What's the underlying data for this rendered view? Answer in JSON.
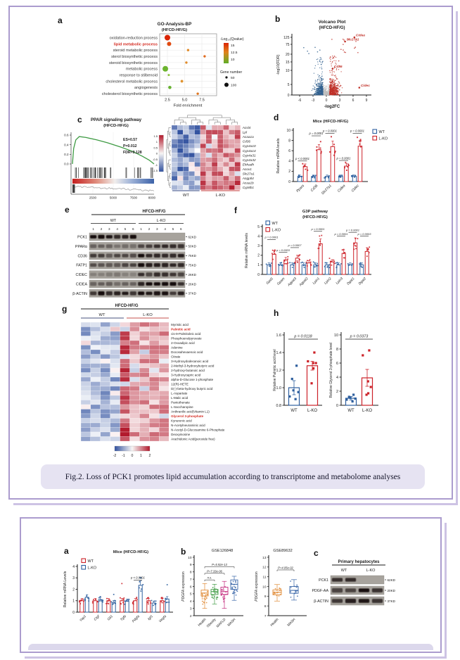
{
  "fig2": {
    "labels": {
      "a": "a",
      "b": "b",
      "c": "c",
      "d": "d",
      "e": "e",
      "f": "f",
      "g": "g",
      "h": "h"
    },
    "caption": "Fig.2. Loss of PCK1 promotes lipid accumulation according to transcriptome and metabolome analyses"
  },
  "fig3": {
    "labels": {
      "a": "a",
      "b": "b",
      "c": "c"
    }
  },
  "colors": {
    "wt_blue": "#2e5f9e",
    "ko_red": "#cc2128",
    "card_border": "#ab9cce",
    "card_shadow": "#cdc3e4",
    "caption_bg": "#e6e3f2",
    "heat_red": "#b2182b",
    "heat_blue": "#31519f",
    "gsea_green": "#3f9b44"
  },
  "chart_data": {
    "go": {
      "type": "scatter",
      "title": "GO-Analysis-BP",
      "subtitle": "(HFCD-HF/G)",
      "xlabel": "Fold enrichment",
      "xticks": [
        "2.5",
        "5.0",
        "7.5"
      ],
      "xtick_values": [
        2.5,
        5.0,
        7.5
      ],
      "xlim": [
        1.4,
        8.6
      ],
      "highlight": "lipid metabolic process",
      "rows": [
        {
          "label": "oxidation-reduction process",
          "fold": 2.5,
          "color": "#da2405",
          "r": 4
        },
        {
          "label": "lipid metabolic process",
          "fold": 2.75,
          "color": "#e14a10",
          "r": 3
        },
        {
          "label": "steroid metabolic process",
          "fold": 5.5,
          "color": "#e08a28",
          "r": 1.7
        },
        {
          "label": "sterol biosynthetic process",
          "fold": 7.9,
          "color": "#e06a1e",
          "r": 1.7
        },
        {
          "label": "steroid biosynthetic process",
          "fold": 5.25,
          "color": "#e08a28",
          "r": 1.7
        },
        {
          "label": "metabolic process",
          "fold": 2.2,
          "color": "#6cb42e",
          "r": 4
        },
        {
          "label": "response to stilbenoid",
          "fold": 2.7,
          "color": "#8cc23c",
          "r": 1.5
        },
        {
          "label": "cholesterol metabolic process",
          "fold": 4.6,
          "color": "#e09430",
          "r": 1.9
        },
        {
          "label": "angiogenesis",
          "fold": 2.85,
          "color": "#67b232",
          "r": 2.3
        },
        {
          "label": "cholesterol biosynthetic process",
          "fold": 6.9,
          "color": "#e0761f",
          "r": 1.7
        }
      ],
      "legend": {
        "qvalue_title": "-Log₁₀(Qvalue)",
        "qvalue_ticks": [
          "15",
          "12.5",
          "10"
        ],
        "gene_title": "Gene number",
        "gene_sizes": [
          {
            "label": "50",
            "r": 1.6
          },
          {
            "label": "100",
            "r": 3
          }
        ]
      }
    },
    "volcano": {
      "type": "scatter",
      "title": "Volcano Plot",
      "subtitle": "(HFCD-HF/G)",
      "xlabel": "-log2FC",
      "ylabel": "-log10(FDR)",
      "xticks": [
        -6,
        -3,
        0,
        3,
        6,
        9
      ],
      "yticks": [
        0,
        5,
        10,
        15,
        20,
        75,
        125
      ],
      "gene_labels": [
        {
          "name": "Cidea",
          "x": 6.3,
          "y": 125
        },
        {
          "name": "Slc27a1",
          "x": 4.2,
          "y": 95
        },
        {
          "name": "Cd36",
          "x": 1.4,
          "y": 11
        },
        {
          "name": "Cidec",
          "x": 7.4,
          "y": 3.5
        }
      ],
      "clusters": {
        "down_n": 420,
        "up_n": 500,
        "ns_n": 320,
        "down_color": "#33618f",
        "up_color": "#c03028",
        "ns_color": "#bdbdbd"
      }
    },
    "gsea": {
      "type": "line",
      "title": "PPAR signaling pathway",
      "subtitle": "(HFCD-HF/G)",
      "stats": [
        "ES=0.57",
        "P=0.012",
        "FDR=0.128"
      ],
      "yticks": [
        "0.6",
        "0.4",
        "0.2",
        "0.0"
      ],
      "xticks": [
        "2500",
        "5000",
        "7500",
        "8000"
      ],
      "es_curve": [
        [
          0,
          0
        ],
        [
          120,
          0.32
        ],
        [
          350,
          0.5
        ],
        [
          700,
          0.57
        ],
        [
          1400,
          0.55
        ],
        [
          2500,
          0.5
        ],
        [
          3600,
          0.44
        ],
        [
          5000,
          0.35
        ],
        [
          6200,
          0.26
        ],
        [
          7200,
          0.16
        ],
        [
          7900,
          0.08
        ],
        [
          8400,
          0
        ]
      ],
      "xmax": 8400
    },
    "heatmap_ppar": {
      "type": "heatmap",
      "genes": [
        "Acsl4",
        "Lpl",
        "Acaa1a",
        "Cd36",
        "Cyp4a10",
        "Cyp4a14",
        "Cyp4a31",
        "Cyp4a32",
        "Ehhadh",
        "Acox1",
        "Slc27a1",
        "Angptl4",
        "Acaa1b",
        "Cyp8b1"
      ],
      "groups": [
        {
          "label": "WT",
          "cols": 5,
          "line_color": "#5a6a9a"
        },
        {
          "label": "L-KO",
          "cols": 7,
          "line_color": "#d06060"
        }
      ],
      "scale_ticks": [
        "1.5",
        "1",
        "0.5",
        "0",
        "-0.5",
        "-1",
        "-1.5"
      ],
      "scale_lim": [
        -1.5,
        1.5
      ]
    },
    "bar_d": {
      "type": "bar",
      "title": "Mice (HFCD-HF/G)",
      "ylabel": "Relative mRNA levels",
      "ylim": [
        0,
        10
      ],
      "yticks": [
        0,
        2,
        4,
        6,
        8,
        10
      ],
      "categories": [
        "Ppara",
        "Cd36",
        "Slc27a1",
        "Cidea",
        "Cidec"
      ],
      "series": [
        {
          "name": "WT",
          "color": "#2e5f9e",
          "values": [
            1,
            1,
            1,
            1,
            1
          ]
        },
        {
          "name": "L-KO",
          "color": "#cc2128",
          "values": [
            2.9,
            6.2,
            6.8,
            3.0,
            6.9
          ]
        }
      ],
      "pvalues": [
        "p < 0.0001",
        "p = 0.0001",
        "p = 0.0001",
        "p = 0.0001",
        "p = 0.0001"
      ]
    },
    "blot_e": {
      "type": "blot",
      "header": "HFCD-HF/G",
      "groups": [
        {
          "label": "WT",
          "lanes": 6
        },
        {
          "label": "L-KO",
          "lanes": 6
        }
      ],
      "lane_numbers": [
        "1",
        "2",
        "3",
        "4",
        "5",
        "6",
        "1",
        "2",
        "3",
        "4",
        "5",
        "6"
      ],
      "rows": [
        {
          "protein": "PCK1",
          "mw": "62KD",
          "wt": 0.95,
          "ko": 0
        },
        {
          "protein": "PPARα",
          "mw": "50KD",
          "wt": 0.4,
          "ko": 0.8
        },
        {
          "protein": "CD36",
          "mw": "75KD",
          "wt": 0.6,
          "ko": 0.95
        },
        {
          "protein": "FATP1",
          "mw": "75KD",
          "wt": 0.55,
          "ko": 0.9
        },
        {
          "protein": "CIDEC",
          "mw": "26KD",
          "wt": 0.25,
          "ko": 0.65
        },
        {
          "protein": "CIDEA",
          "mw": "26KD",
          "wt": 0.4,
          "ko": 0.95
        },
        {
          "protein": "β-ACTIN",
          "mw": "37KD",
          "wt": 0.88,
          "ko": 0.88
        }
      ]
    },
    "bar_f": {
      "type": "bar",
      "title": "G3P pathway",
      "subtitle": "(HFCD-HF/G)",
      "ylabel": "Relative mRNA levels",
      "ylim": [
        0,
        5
      ],
      "yticks": [
        0,
        1,
        2,
        3,
        4,
        5
      ],
      "categories": [
        "Gpd1",
        "Gpam",
        "Agpat3",
        "Agpat2",
        "Lpin1",
        "Lpin2",
        "Lpin3",
        "Dgat1",
        "Dgat2"
      ],
      "series": [
        {
          "name": "WT",
          "color": "#2e5f9e",
          "values": [
            1,
            1,
            1,
            1,
            1,
            1,
            1,
            1,
            1
          ]
        },
        {
          "name": "L-KO",
          "color": "#cc2128",
          "values": [
            2.1,
            1.5,
            1.7,
            1.2,
            3.2,
            1.3,
            2.2,
            3.3,
            2.4
          ]
        }
      ],
      "pvalues": [
        "p = 0.0001",
        "p = 0.0003",
        "p = 0.0007",
        null,
        "p < 0.0001",
        null,
        "p = 0.0001",
        "p = 0.0001",
        "p = 0.0003"
      ]
    },
    "heatmap_metab": {
      "type": "heatmap",
      "header": "HFCD-HF/G",
      "groups": [
        {
          "label": "WT",
          "cols": 4,
          "line_color": "#44507e"
        },
        {
          "label": "L-KO",
          "cols": 5,
          "line_color": "#c4504e"
        }
      ],
      "metabolites": [
        "Myristic acid",
        "Palmitic acid",
        "cis-9-Palmitoleic acid",
        "Phosphoenolpyruvate",
        "2-Oxoadipic acid",
        "Adenine",
        "Docosahexaenoic acid",
        "Citrate",
        "3-Hydroxydodecanoic acid",
        "2-Methyl-3-hydroxybutyric acid",
        "2-hydroxy-butanoic acid",
        "3-Hydroxycapric acid",
        "alpha-D-Glucose 1-phosphate",
        "12(R)-HETE",
        "D(-)-beta-hydroxy butyric acid",
        "L-Aspartate",
        "L-Malic acid",
        "Pantothenate",
        "L-Saccharopine",
        "Anthranilic acid(Vitamin L1)",
        "Glycerol 3-phosphate",
        "Kynurenic acid",
        "N-Acetylneuraminic acid",
        "N-Acetyl-D-Glucosamine 6-Phosphate",
        "Deoxyinosine",
        "Arachidonic Acid(peroxide free)"
      ],
      "highlight_indices": [
        1,
        20
      ],
      "scale_ticks": [
        "-2",
        "-1",
        "0",
        "1",
        "2"
      ],
      "scale_lim": [
        -2,
        2
      ]
    },
    "bar_h1": {
      "type": "bar",
      "ylabel": "Relative Palmitic acid level",
      "p_value": "p = 0.0118",
      "ylim": [
        0.8,
        1.6
      ],
      "yticks": [
        "0.8",
        "1.0",
        "1.2",
        "1.4",
        "1.6"
      ],
      "categories": [
        "WT",
        "L-KO"
      ],
      "values": [
        1.0,
        1.25
      ],
      "errors": [
        0.08,
        0.05
      ],
      "dots": [
        [
          0.87,
          0.9,
          0.95,
          0.97,
          1.1,
          1.25
        ],
        [
          1.05,
          1.22,
          1.28,
          1.28,
          1.3,
          1.4
        ]
      ],
      "colors": [
        "#2e5f9e",
        "#cc2128"
      ]
    },
    "bar_h2": {
      "type": "bar",
      "ylabel": "Relative Glycerol 3-phosphate level",
      "p_value": "p = 0.0373",
      "ylim": [
        0,
        10
      ],
      "yticks": [
        "0",
        "2",
        "4",
        "6",
        "8",
        "10"
      ],
      "categories": [
        "WT",
        "L-KO"
      ],
      "values": [
        1.0,
        3.9
      ],
      "errors": [
        0.25,
        1.2
      ],
      "dots": [
        [
          0.55,
          0.8,
          0.95,
          1.05,
          1.2,
          1.5
        ],
        [
          1.5,
          1.7,
          2.6,
          3.4,
          7.1,
          7.8
        ]
      ],
      "colors": [
        "#2e5f9e",
        "#cc2128"
      ]
    },
    "bar_f3a": {
      "type": "bar",
      "title": "Mice (HFCD-HF/G)",
      "ylabel": "Relative mRNA Levels",
      "ylim": [
        0,
        4
      ],
      "yticks": [
        0,
        1,
        2,
        3,
        4
      ],
      "categories": [
        "Yap1",
        "Ctgf",
        "Gli1",
        "Tgfb",
        "Pdgfa",
        "Igf1",
        "Vegfa"
      ],
      "series": [
        {
          "name": "WT",
          "color": "#cc2128",
          "values": [
            1,
            1,
            1,
            1,
            1,
            1,
            1
          ]
        },
        {
          "name": "L-KO",
          "color": "#2e5f9e",
          "values": [
            1.3,
            1.1,
            0.85,
            0.95,
            2.35,
            0.8,
            1.15
          ]
        }
      ],
      "pvalues": [
        null,
        null,
        null,
        null,
        "p < 0.0001",
        null,
        null
      ]
    },
    "box_gse126848": {
      "type": "box",
      "title": "GSE126848",
      "ylabel_italic": "PDGFA",
      "ylabel_rest": " expression",
      "ylim": [
        2,
        10
      ],
      "yticks": [
        2,
        3,
        4,
        5,
        6,
        7,
        8,
        9,
        10
      ],
      "groups": [
        {
          "label": "Health",
          "color": "#e08a35",
          "median": 5.1,
          "q1": 4.7,
          "q3": 5.5,
          "lo": 3.0,
          "hi": 6.4
        },
        {
          "label": "Obesity",
          "color": "#3f9b44",
          "median": 5.3,
          "q1": 4.9,
          "q3": 5.6,
          "lo": 3.6,
          "hi": 6.3
        },
        {
          "label": "MAFLD",
          "color": "#c42a7c",
          "median": 5.3,
          "q1": 4.9,
          "q3": 5.9,
          "lo": 3.0,
          "hi": 6.7
        },
        {
          "label": "MASH",
          "color": "#3a66a8",
          "median": 6.3,
          "q1": 5.6,
          "q3": 6.9,
          "lo": 4.1,
          "hi": 7.4
        }
      ],
      "annotations": [
        {
          "a": 0,
          "b": 1,
          "text": "n.s.",
          "y": 6.9
        },
        {
          "a": 0,
          "b": 2,
          "text": "P=7.33e-06",
          "y": 7.8
        },
        {
          "a": 0,
          "b": 3,
          "text": "P=5.92e-13",
          "y": 8.7
        }
      ]
    },
    "box_gse89632": {
      "type": "box",
      "title": "GSE89632",
      "ylabel_italic": "PDGFA",
      "ylabel_rest": " expression",
      "ylim": [
        7,
        13
      ],
      "yticks": [
        7,
        8,
        9,
        10,
        11,
        12,
        13
      ],
      "groups": [
        {
          "label": "Health",
          "color": "#e08a35",
          "median": 9.4,
          "q1": 9.15,
          "q3": 9.65,
          "lo": 8.5,
          "hi": 10.2
        },
        {
          "label": "MASH",
          "color": "#3a66a8",
          "median": 9.6,
          "q1": 9.3,
          "q3": 10.0,
          "lo": 8.6,
          "hi": 10.7
        }
      ],
      "annotations": [
        {
          "a": 0,
          "b": 1,
          "text": "P=4.05e-02",
          "y": 11.7
        }
      ]
    },
    "blot_f3c": {
      "type": "blot",
      "header": "Primary hepatocytes",
      "groups": [
        {
          "label": "WT",
          "lanes": 2
        },
        {
          "label": "L-KO",
          "lanes": 2
        }
      ],
      "rows": [
        {
          "protein": "PCK1",
          "mw": "62KD",
          "wt": 0.9,
          "ko": 0
        },
        {
          "protein": "PDGF-AA",
          "mw": "20KD",
          "wt": 0.55,
          "ko": 0.95
        },
        {
          "protein": "β-ACTIN",
          "mw": "37KD",
          "wt": 0.88,
          "ko": 0.88
        }
      ]
    }
  }
}
